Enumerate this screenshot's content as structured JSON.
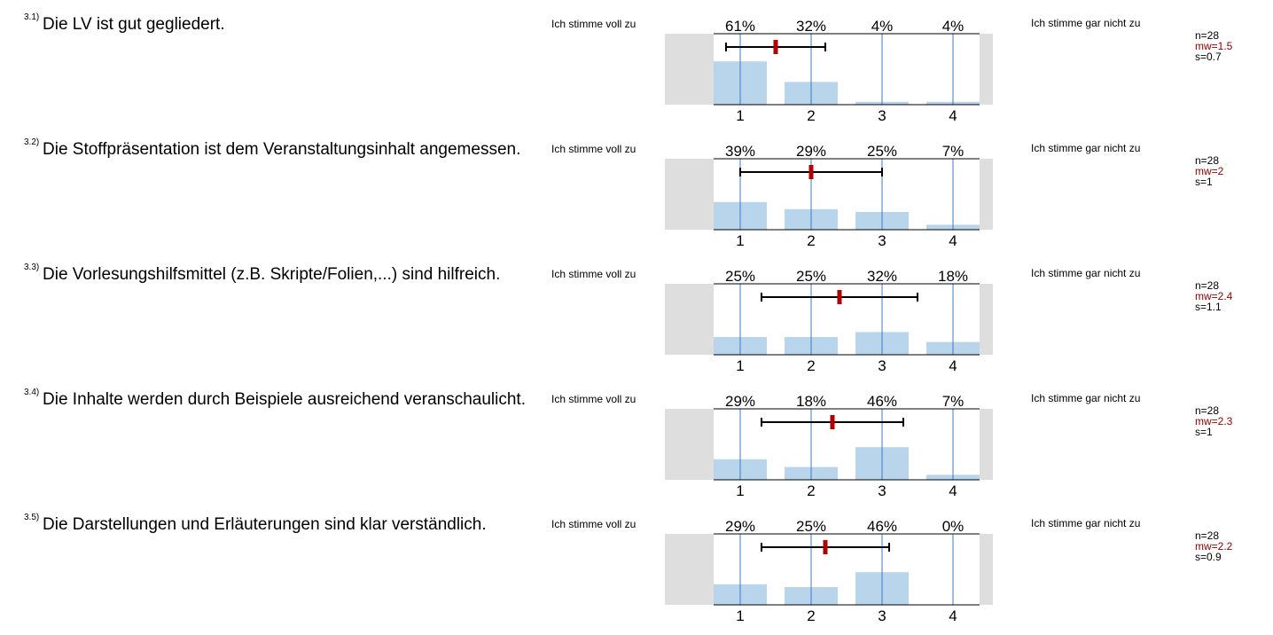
{
  "scale": {
    "left_label": "Ich stimme voll zu",
    "right_label": "Ich stimme gar nicht zu",
    "categories": [
      "1",
      "2",
      "3",
      "4"
    ]
  },
  "colors": {
    "bar": "#b8d5ec",
    "grid": "#3a7cc4",
    "mean": "#b00000",
    "side": "#dedede"
  },
  "items": [
    {
      "num": "3.1)",
      "text": "Die LV ist gut gegliedert.",
      "pct_labels": [
        "61%",
        "32%",
        "4%",
        "4%"
      ],
      "n": "n=28",
      "mw": "mw=1.5",
      "s": "s=0.7"
    },
    {
      "num": "3.2)",
      "text": "Die Stoffpräsentation ist dem Veranstaltungsinhalt angemessen.",
      "pct_labels": [
        "39%",
        "29%",
        "25%",
        "7%"
      ],
      "n": "n=28",
      "mw": "mw=2",
      "s": "s=1"
    },
    {
      "num": "3.3)",
      "text": "Die Vorlesungshilfsmittel (z.B. Skripte/Folien,...) sind hilfreich.",
      "pct_labels": [
        "25%",
        "25%",
        "32%",
        "18%"
      ],
      "n": "n=28",
      "mw": "mw=2.4",
      "s": "s=1.1"
    },
    {
      "num": "3.4)",
      "text": "Die Inhalte werden durch Beispiele ausreichend veranschaulicht.",
      "pct_labels": [
        "29%",
        "18%",
        "46%",
        "7%"
      ],
      "n": "n=28",
      "mw": "mw=2.3",
      "s": "s=1"
    },
    {
      "num": "3.5)",
      "text": "Die Darstellungen und Erläuterungen sind klar verständlich.",
      "pct_labels": [
        "29%",
        "25%",
        "46%",
        "0%"
      ],
      "n": "n=28",
      "mw": "mw=2.2",
      "s": "s=0.9"
    }
  ],
  "chart_data": [
    {
      "type": "bar",
      "categories": [
        "1",
        "2",
        "3",
        "4"
      ],
      "values": [
        61,
        32,
        4,
        4
      ],
      "mean": 1.5,
      "sd": 0.7,
      "n": 28,
      "ylim": [
        0,
        100
      ]
    },
    {
      "type": "bar",
      "categories": [
        "1",
        "2",
        "3",
        "4"
      ],
      "values": [
        39,
        29,
        25,
        7
      ],
      "mean": 2.0,
      "sd": 1.0,
      "n": 28,
      "ylim": [
        0,
        100
      ]
    },
    {
      "type": "bar",
      "categories": [
        "1",
        "2",
        "3",
        "4"
      ],
      "values": [
        25,
        25,
        32,
        18
      ],
      "mean": 2.4,
      "sd": 1.1,
      "n": 28,
      "ylim": [
        0,
        100
      ]
    },
    {
      "type": "bar",
      "categories": [
        "1",
        "2",
        "3",
        "4"
      ],
      "values": [
        29,
        18,
        46,
        7
      ],
      "mean": 2.3,
      "sd": 1.0,
      "n": 28,
      "ylim": [
        0,
        100
      ]
    },
    {
      "type": "bar",
      "categories": [
        "1",
        "2",
        "3",
        "4"
      ],
      "values": [
        29,
        25,
        46,
        0
      ],
      "mean": 2.2,
      "sd": 0.9,
      "n": 28,
      "ylim": [
        0,
        100
      ]
    }
  ]
}
